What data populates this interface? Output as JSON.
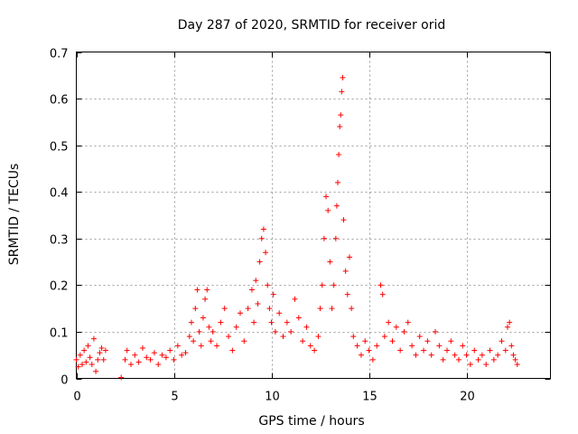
{
  "chart_data": {
    "type": "scatter",
    "title": "Day 287 of 2020, SRMTID for receiver orid",
    "xlabel": "GPS time / hours",
    "ylabel": "SRMTID / TECUs",
    "xlim": [
      0,
      24.3
    ],
    "ylim": [
      0,
      0.7
    ],
    "grid": true,
    "legend": "none",
    "marker": "plus",
    "color": "#ff0000",
    "xticks": [
      {
        "value": 0,
        "label": "0"
      },
      {
        "value": 5,
        "label": "5"
      },
      {
        "value": 10,
        "label": "10"
      },
      {
        "value": 15,
        "label": "15"
      },
      {
        "value": 20,
        "label": "20"
      }
    ],
    "yticks": [
      {
        "value": 0,
        "label": "0"
      },
      {
        "value": 0.1,
        "label": "0.1"
      },
      {
        "value": 0.2,
        "label": "0.2"
      },
      {
        "value": 0.3,
        "label": "0.3"
      },
      {
        "value": 0.4,
        "label": "0.4"
      },
      {
        "value": 0.5,
        "label": "0.5"
      },
      {
        "value": 0.6,
        "label": "0.6"
      },
      {
        "value": 0.7,
        "label": "0.7"
      }
    ],
    "series": [
      {
        "name": "SRMTID",
        "points": [
          [
            0.0,
            0.04
          ],
          [
            0.1,
            0.025
          ],
          [
            0.2,
            0.05
          ],
          [
            0.3,
            0.03
          ],
          [
            0.4,
            0.06
          ],
          [
            0.5,
            0.035
          ],
          [
            0.6,
            0.07
          ],
          [
            0.7,
            0.045
          ],
          [
            0.8,
            0.03
          ],
          [
            0.9,
            0.085
          ],
          [
            1.0,
            0.015
          ],
          [
            1.1,
            0.04
          ],
          [
            1.2,
            0.055
          ],
          [
            1.3,
            0.065
          ],
          [
            1.4,
            0.04
          ],
          [
            1.5,
            0.06
          ],
          [
            2.3,
            0.002
          ],
          [
            2.5,
            0.04
          ],
          [
            2.6,
            0.06
          ],
          [
            2.8,
            0.03
          ],
          [
            3.0,
            0.05
          ],
          [
            3.2,
            0.035
          ],
          [
            3.4,
            0.065
          ],
          [
            3.6,
            0.045
          ],
          [
            3.8,
            0.04
          ],
          [
            4.0,
            0.055
          ],
          [
            4.2,
            0.03
          ],
          [
            4.4,
            0.05
          ],
          [
            4.6,
            0.045
          ],
          [
            4.8,
            0.06
          ],
          [
            5.0,
            0.04
          ],
          [
            5.2,
            0.07
          ],
          [
            5.4,
            0.05
          ],
          [
            5.6,
            0.055
          ],
          [
            5.8,
            0.09
          ],
          [
            5.9,
            0.12
          ],
          [
            6.0,
            0.08
          ],
          [
            6.1,
            0.15
          ],
          [
            6.2,
            0.19
          ],
          [
            6.3,
            0.1
          ],
          [
            6.4,
            0.07
          ],
          [
            6.5,
            0.13
          ],
          [
            6.6,
            0.17
          ],
          [
            6.7,
            0.19
          ],
          [
            6.8,
            0.11
          ],
          [
            6.9,
            0.08
          ],
          [
            7.0,
            0.1
          ],
          [
            7.2,
            0.07
          ],
          [
            7.4,
            0.12
          ],
          [
            7.6,
            0.15
          ],
          [
            7.8,
            0.09
          ],
          [
            8.0,
            0.06
          ],
          [
            8.2,
            0.11
          ],
          [
            8.4,
            0.14
          ],
          [
            8.6,
            0.08
          ],
          [
            8.8,
            0.15
          ],
          [
            9.0,
            0.19
          ],
          [
            9.1,
            0.12
          ],
          [
            9.2,
            0.21
          ],
          [
            9.3,
            0.16
          ],
          [
            9.4,
            0.25
          ],
          [
            9.5,
            0.3
          ],
          [
            9.6,
            0.32
          ],
          [
            9.7,
            0.27
          ],
          [
            9.8,
            0.2
          ],
          [
            9.9,
            0.15
          ],
          [
            10.0,
            0.12
          ],
          [
            10.1,
            0.18
          ],
          [
            10.2,
            0.1
          ],
          [
            10.4,
            0.14
          ],
          [
            10.6,
            0.09
          ],
          [
            10.8,
            0.12
          ],
          [
            11.0,
            0.1
          ],
          [
            11.2,
            0.17
          ],
          [
            11.4,
            0.13
          ],
          [
            11.6,
            0.08
          ],
          [
            11.8,
            0.11
          ],
          [
            12.0,
            0.07
          ],
          [
            12.2,
            0.06
          ],
          [
            12.4,
            0.09
          ],
          [
            12.5,
            0.15
          ],
          [
            12.6,
            0.2
          ],
          [
            12.7,
            0.3
          ],
          [
            12.8,
            0.39
          ],
          [
            12.9,
            0.36
          ],
          [
            13.0,
            0.25
          ],
          [
            13.1,
            0.15
          ],
          [
            13.2,
            0.2
          ],
          [
            13.3,
            0.3
          ],
          [
            13.35,
            0.37
          ],
          [
            13.4,
            0.42
          ],
          [
            13.45,
            0.48
          ],
          [
            13.5,
            0.54
          ],
          [
            13.55,
            0.565
          ],
          [
            13.6,
            0.615
          ],
          [
            13.65,
            0.645
          ],
          [
            13.7,
            0.34
          ],
          [
            13.8,
            0.23
          ],
          [
            13.9,
            0.18
          ],
          [
            14.0,
            0.26
          ],
          [
            14.1,
            0.15
          ],
          [
            14.2,
            0.09
          ],
          [
            14.4,
            0.07
          ],
          [
            14.6,
            0.05
          ],
          [
            14.8,
            0.08
          ],
          [
            15.0,
            0.06
          ],
          [
            15.2,
            0.04
          ],
          [
            15.4,
            0.07
          ],
          [
            15.6,
            0.2
          ],
          [
            15.7,
            0.18
          ],
          [
            15.8,
            0.09
          ],
          [
            16.0,
            0.12
          ],
          [
            16.2,
            0.08
          ],
          [
            16.4,
            0.11
          ],
          [
            16.6,
            0.06
          ],
          [
            16.8,
            0.1
          ],
          [
            17.0,
            0.12
          ],
          [
            17.2,
            0.07
          ],
          [
            17.4,
            0.05
          ],
          [
            17.6,
            0.09
          ],
          [
            17.8,
            0.06
          ],
          [
            18.0,
            0.08
          ],
          [
            18.2,
            0.05
          ],
          [
            18.4,
            0.1
          ],
          [
            18.6,
            0.07
          ],
          [
            18.8,
            0.04
          ],
          [
            19.0,
            0.06
          ],
          [
            19.2,
            0.08
          ],
          [
            19.4,
            0.05
          ],
          [
            19.6,
            0.04
          ],
          [
            19.8,
            0.07
          ],
          [
            20.0,
            0.05
          ],
          [
            20.2,
            0.03
          ],
          [
            20.4,
            0.06
          ],
          [
            20.6,
            0.04
          ],
          [
            20.8,
            0.05
          ],
          [
            21.0,
            0.03
          ],
          [
            21.2,
            0.06
          ],
          [
            21.4,
            0.04
          ],
          [
            21.6,
            0.05
          ],
          [
            21.8,
            0.08
          ],
          [
            22.0,
            0.06
          ],
          [
            22.1,
            0.11
          ],
          [
            22.2,
            0.12
          ],
          [
            22.3,
            0.07
          ],
          [
            22.4,
            0.05
          ],
          [
            22.5,
            0.04
          ],
          [
            22.6,
            0.03
          ]
        ]
      }
    ]
  }
}
